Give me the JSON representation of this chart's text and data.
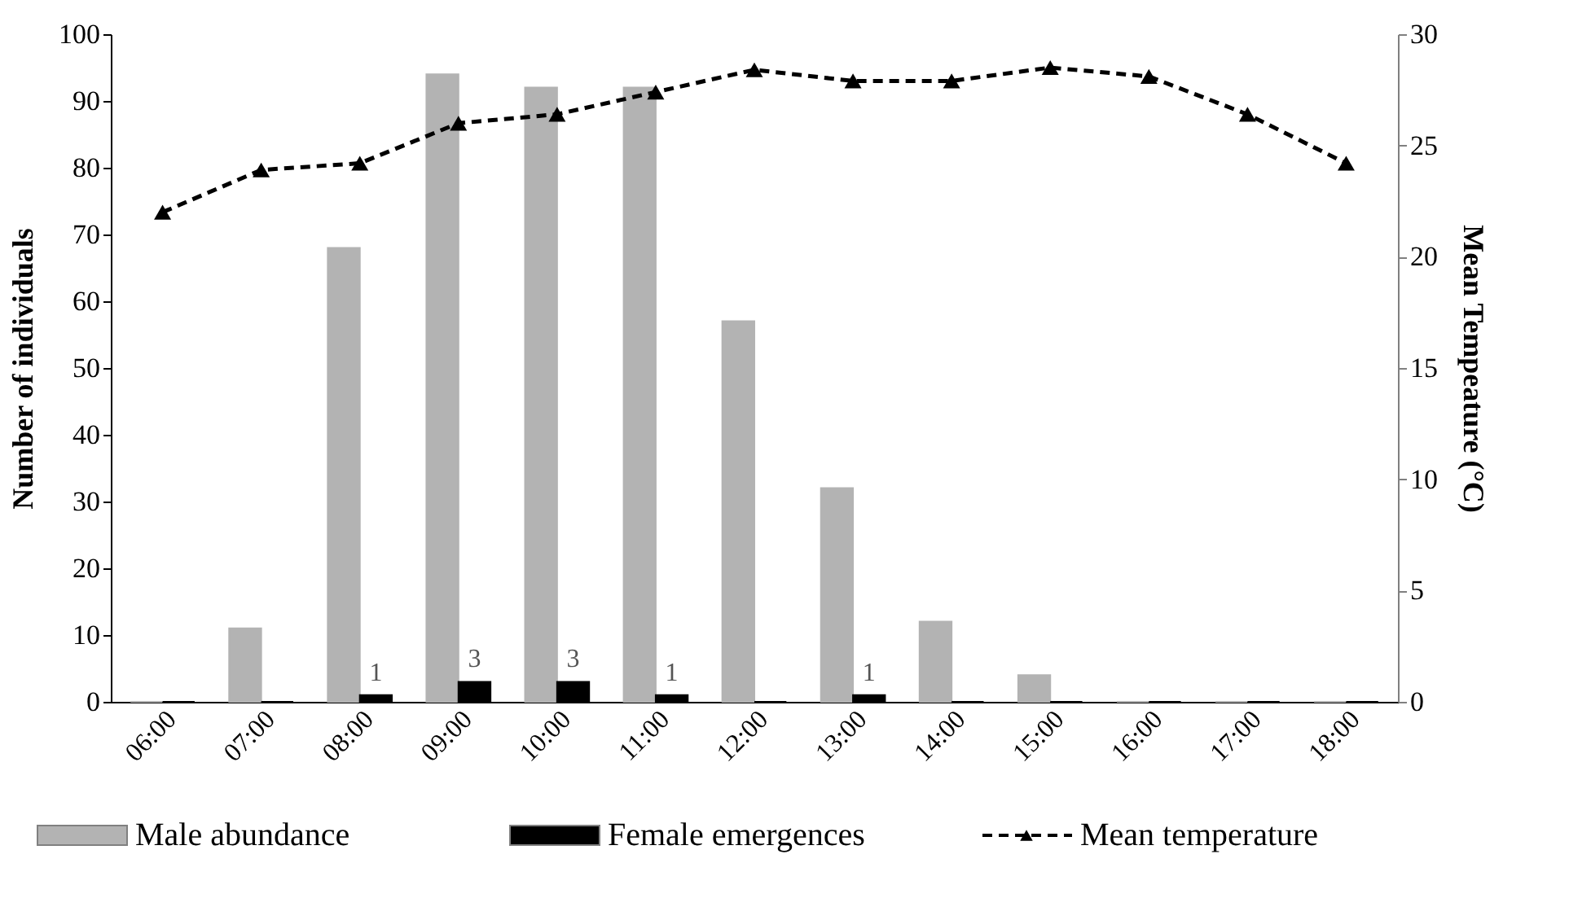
{
  "chart_data": {
    "type": "bar",
    "ylabel": "Number of individuals",
    "y2label": "Mean Tempeature (°C)",
    "categories": [
      "06:00",
      "07:00",
      "08:00",
      "09:00",
      "10:00",
      "11:00",
      "12:00",
      "13:00",
      "14:00",
      "15:00",
      "16:00",
      "17:00",
      "18:00"
    ],
    "series": [
      {
        "name": "Male abundance",
        "color": "#b3b3b3",
        "values": [
          0,
          11,
          68,
          94,
          92,
          92,
          57,
          32,
          12,
          4,
          0,
          0,
          0
        ]
      },
      {
        "name": "Female emergences",
        "color": "#000000",
        "values": [
          0,
          0,
          1,
          3,
          3,
          1,
          0,
          1,
          0,
          0,
          0,
          0,
          0
        ],
        "value_labels": [
          null,
          null,
          "1",
          "3",
          "3",
          "1",
          null,
          "1",
          null,
          null,
          null,
          null,
          null
        ]
      },
      {
        "name": "Mean temperature",
        "type": "line",
        "axis": "y2",
        "color": "#000000",
        "marker": "triangle",
        "line_style": "dashed",
        "values": [
          22.0,
          23.9,
          24.2,
          26.0,
          26.4,
          27.4,
          28.4,
          27.9,
          27.9,
          28.5,
          28.1,
          26.4,
          24.2
        ]
      }
    ],
    "ylim": [
      0,
      100
    ],
    "yticks": [
      0,
      10,
      20,
      30,
      40,
      50,
      60,
      70,
      80,
      90,
      100
    ],
    "y2lim": [
      0,
      30
    ],
    "y2ticks": [
      0,
      5,
      10,
      15,
      20,
      25,
      30
    ],
    "grid": false,
    "legend": "bottom"
  }
}
